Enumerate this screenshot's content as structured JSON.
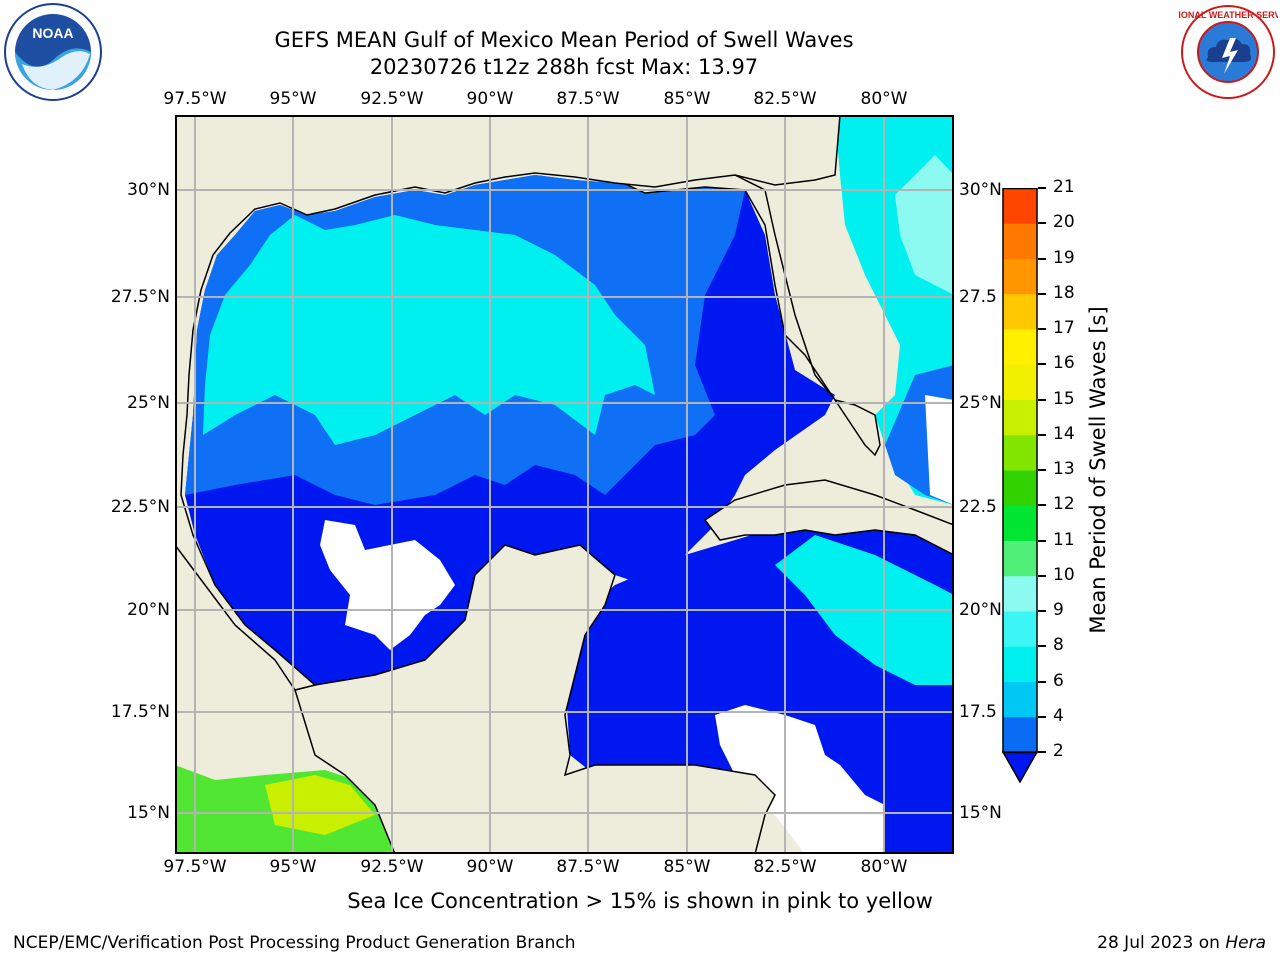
{
  "title_line1": "GEFS MEAN Gulf of Mexico Mean Period of Swell Waves",
  "title_line2": "20230726 t12z 288h fcst   Max: 13.97",
  "x_ticks": [
    "97.5°W",
    "95°W",
    "92.5°W",
    "90°W",
    "87.5°W",
    "85°W",
    "82.5°W",
    "80°W"
  ],
  "y_ticks_left": [
    "30°N",
    "27.5°N",
    "25°N",
    "22.5°N",
    "20°N",
    "17.5°N",
    "15°N"
  ],
  "y_ticks_right": [
    "30°N",
    "27.5",
    "25°N",
    "22.5",
    "20°N",
    "17.5",
    "15°N"
  ],
  "colorbar": {
    "label": "Mean Period of Swell Waves [s]",
    "ticks": [
      "2",
      "4",
      "6",
      "8",
      "9",
      "10",
      "11",
      "12",
      "13",
      "14",
      "15",
      "16",
      "17",
      "18",
      "19",
      "20",
      "21"
    ],
    "colors": [
      "#0a6cf5",
      "#00c8f5",
      "#00f0f0",
      "#3cf5f5",
      "#8cfaf0",
      "#50f078",
      "#00e632",
      "#32d200",
      "#82e600",
      "#c8f000",
      "#f0f000",
      "#fff000",
      "#ffc800",
      "#ff9600",
      "#ff7800",
      "#ff4600",
      "#ff0000"
    ]
  },
  "logos": {
    "left": "NOAA",
    "right": "NATIONAL WEATHER SERVICE"
  },
  "note": "Sea Ice Concentration > 15% is shown in pink to yellow",
  "footer_left": "NCEP/EMC/Verification Post Processing Product Generation Branch",
  "footer_date": "28 Jul 2023 on ",
  "footer_host": "Hera"
}
